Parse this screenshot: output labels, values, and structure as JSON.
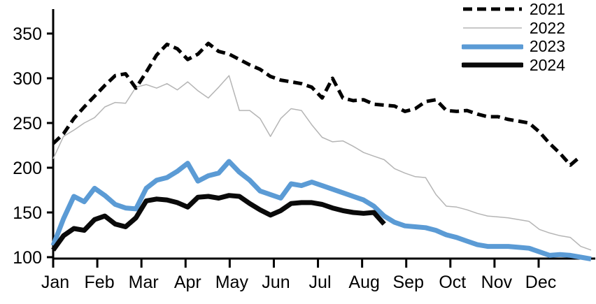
{
  "chart_data": {
    "type": "line",
    "title": "",
    "x_axis": {
      "tick_labels": [
        "Jan",
        "Feb",
        "Mar",
        "Apr",
        "May",
        "Jun",
        "Jul",
        "Aug",
        "Sep",
        "Oct",
        "Nov",
        "Dec"
      ]
    },
    "y_axis": {
      "ticks": [
        100,
        150,
        200,
        250,
        300,
        350
      ],
      "range": [
        100,
        360
      ]
    },
    "x_resolution": "weekly",
    "grid": "off",
    "legend": {
      "position": "top-right"
    },
    "series": [
      {
        "name": "2021",
        "color": "#000000",
        "style": "dashed",
        "width": 5,
        "values": [
          227,
          238,
          255,
          268,
          280,
          292,
          303,
          305,
          289,
          307,
          326,
          338,
          333,
          321,
          327,
          339,
          330,
          327,
          321,
          315,
          310,
          302,
          298,
          296,
          294,
          290,
          278,
          300,
          278,
          275,
          276,
          271,
          270,
          269,
          263,
          266,
          274,
          276,
          264,
          263,
          264,
          260,
          257,
          257,
          254,
          252,
          250,
          240,
          227,
          216,
          203,
          213,
          null
        ]
      },
      {
        "name": "2022",
        "color": "#b5b5b5",
        "style": "solid",
        "width": 1.5,
        "values": [
          210,
          235,
          242,
          250,
          256,
          268,
          273,
          272,
          290,
          293,
          289,
          294,
          287,
          296,
          286,
          278,
          290,
          303,
          264,
          264,
          255,
          235,
          255,
          266,
          264,
          248,
          234,
          229,
          230,
          224,
          217,
          213,
          209,
          199,
          194,
          190,
          189,
          170,
          157,
          156,
          153,
          149,
          146,
          145,
          144,
          142,
          140,
          131,
          127,
          124,
          122,
          112,
          108
        ]
      },
      {
        "name": "2023",
        "color": "#5b9bd5",
        "style": "solid",
        "width": 7,
        "values": [
          113,
          143,
          168,
          162,
          177,
          169,
          159,
          155,
          154,
          177,
          186,
          189,
          196,
          205,
          185,
          191,
          194,
          207,
          195,
          186,
          174,
          170,
          166,
          182,
          180,
          184,
          180,
          176,
          172,
          168,
          164,
          157,
          146,
          139,
          135,
          134,
          133,
          130,
          125,
          122,
          118,
          114,
          112,
          112,
          112,
          111,
          110,
          106,
          102,
          103,
          102,
          100,
          98
        ]
      },
      {
        "name": "2024",
        "color": "#0a0a0a",
        "style": "solid",
        "width": 7,
        "values": [
          108,
          124,
          132,
          130,
          142,
          146,
          137,
          134,
          144,
          163,
          165,
          164,
          161,
          156,
          167,
          168,
          166,
          169,
          168,
          160,
          153,
          147,
          152,
          160,
          161,
          161,
          159,
          155,
          152,
          150,
          149,
          150,
          137,
          null,
          null,
          null,
          null,
          null,
          null,
          null,
          null,
          null,
          null,
          null,
          null,
          null,
          null,
          null,
          null,
          null,
          null,
          null,
          null
        ]
      }
    ]
  }
}
